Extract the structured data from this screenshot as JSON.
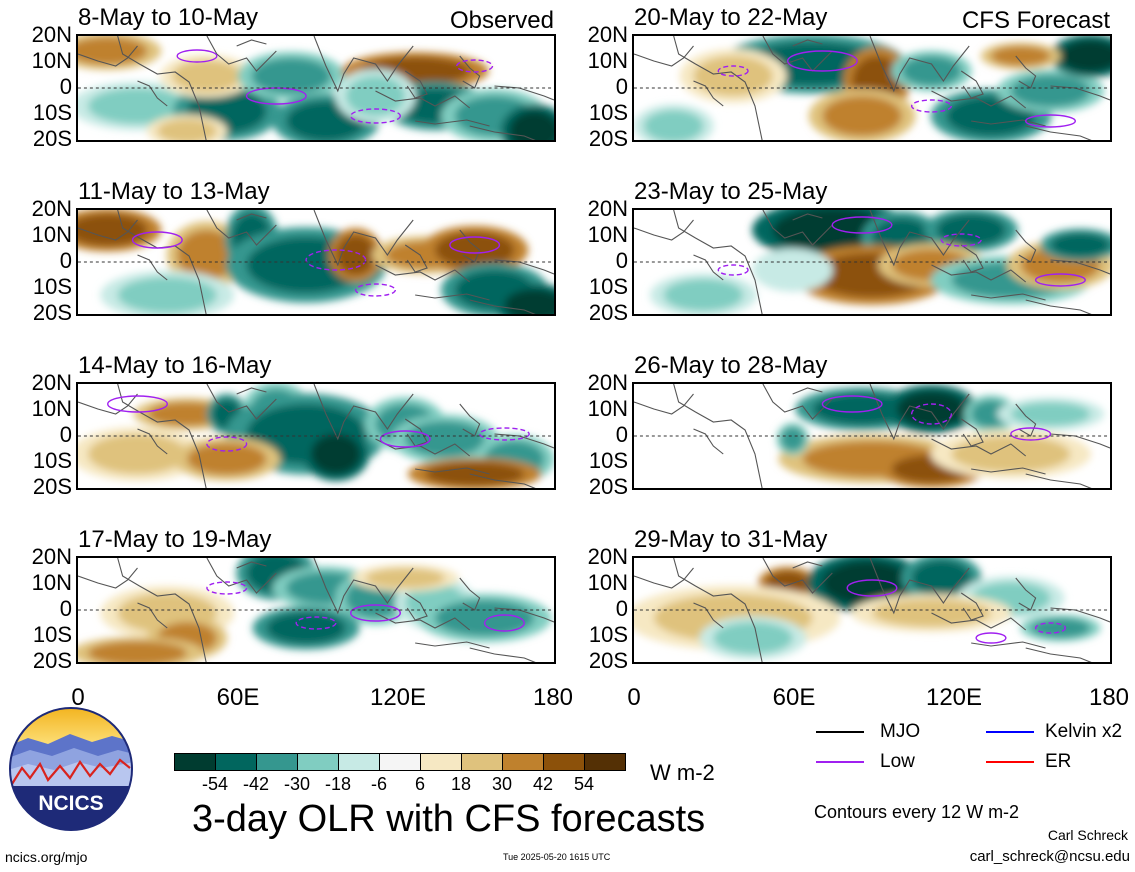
{
  "title": "3-day OLR with CFS forecasts",
  "units": "W m-2",
  "contour_note": "Contours every 12 W m-2",
  "credit_name": "Carl Schreck",
  "credit_email": "carl_schreck@ncsu.edu",
  "url": "ncics.org/mjo",
  "timestamp": "Tue 2025-05-20 1615 UTC",
  "logo_text": "NCICS",
  "column_tags": {
    "observed": "Observed",
    "forecast": "CFS Forecast"
  },
  "lat_labels": [
    "20N",
    "10N",
    "0",
    "10S",
    "20S"
  ],
  "lon_labels": [
    "0",
    "60E",
    "120E",
    "180"
  ],
  "legend": [
    {
      "label": "MJO",
      "color": "#000000"
    },
    {
      "label": "Kelvin x2",
      "color": "#0000ff"
    },
    {
      "label": "Low",
      "color": "#a020f0"
    },
    {
      "label": "ER",
      "color": "#ff0000"
    }
  ],
  "colorbar": {
    "labels": [
      "-54",
      "-42",
      "-30",
      "-18",
      "-6",
      "6",
      "18",
      "30",
      "42",
      "54"
    ],
    "colors": [
      "#003c30",
      "#01665e",
      "#35978f",
      "#80cdc1",
      "#c7eae5",
      "#f5f5f5",
      "#f6e8c3",
      "#dfc27d",
      "#bf812d",
      "#8c510a",
      "#543005"
    ]
  },
  "panels": [
    {
      "title": "8-May to 10-May",
      "tag": "observed"
    },
    {
      "title": "20-May to 22-May",
      "tag": "forecast"
    },
    {
      "title": "11-May to 13-May"
    },
    {
      "title": "23-May to 25-May"
    },
    {
      "title": "14-May to 16-May"
    },
    {
      "title": "26-May to 28-May"
    },
    {
      "title": "17-May to 19-May"
    },
    {
      "title": "29-May to 31-May"
    }
  ],
  "chart_data": {
    "type": "heatmap",
    "variable": "3-day mean OLR anomaly",
    "units": "W m-2",
    "x_range": [
      0,
      180
    ],
    "y_range": [
      -20,
      20
    ],
    "x_ticks": [
      "0",
      "60E",
      "120E",
      "180"
    ],
    "y_ticks": [
      "20N",
      "10N",
      "0",
      "10S",
      "20S"
    ],
    "color_levels": [
      -54,
      -42,
      -30,
      -18,
      -6,
      6,
      18,
      30,
      42,
      54
    ],
    "panels": [
      "8-May to 10-May",
      "11-May to 13-May",
      "14-May to 16-May",
      "17-May to 19-May",
      "20-May to 22-May",
      "23-May to 25-May",
      "26-May to 28-May",
      "29-May to 31-May"
    ]
  }
}
